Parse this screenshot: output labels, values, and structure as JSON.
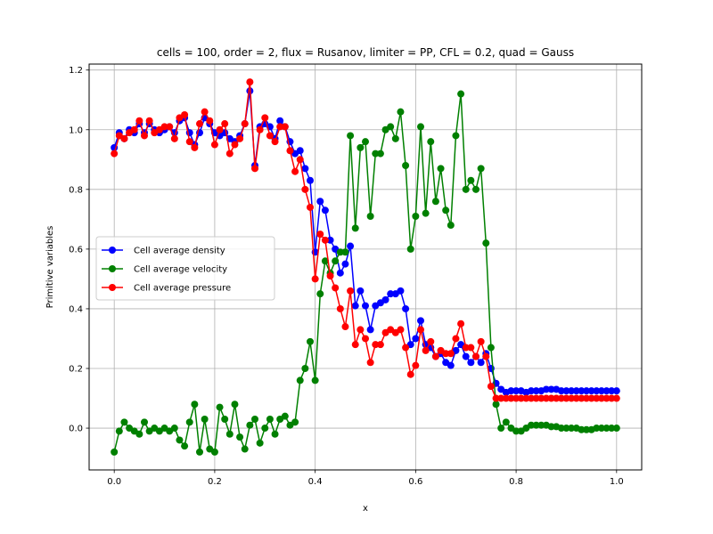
{
  "chart_data": {
    "type": "line",
    "title": "cells = 100, order = 2, flux = Rusanov, limiter = PP, CFL = 0.2, quad = Gauss",
    "xlabel": "x",
    "ylabel": "Primitive variables",
    "xlim": [
      -0.05,
      1.05
    ],
    "ylim": [
      -0.14,
      1.22
    ],
    "xticks": [
      0.0,
      0.2,
      0.4,
      0.6,
      0.8,
      1.0
    ],
    "xtick_labels": [
      "0.0",
      "0.2",
      "0.4",
      "0.6",
      "0.8",
      "1.0"
    ],
    "yticks": [
      0.0,
      0.2,
      0.4,
      0.6,
      0.8,
      1.0,
      1.2
    ],
    "ytick_labels": [
      "0.0",
      "0.2",
      "0.4",
      "0.6",
      "0.8",
      "1.0",
      "1.2"
    ],
    "grid": true,
    "legend_position": "center-left",
    "x": [
      0.0,
      0.01,
      0.02,
      0.03,
      0.04,
      0.05,
      0.06,
      0.07,
      0.08,
      0.09,
      0.1,
      0.11,
      0.12,
      0.13,
      0.14,
      0.15,
      0.16,
      0.17,
      0.18,
      0.19,
      0.2,
      0.21,
      0.22,
      0.23,
      0.24,
      0.25,
      0.26,
      0.27,
      0.28,
      0.29,
      0.3,
      0.31,
      0.32,
      0.33,
      0.34,
      0.35,
      0.36,
      0.37,
      0.38,
      0.39,
      0.4,
      0.41,
      0.42,
      0.43,
      0.44,
      0.45,
      0.46,
      0.47,
      0.48,
      0.49,
      0.5,
      0.51,
      0.52,
      0.53,
      0.54,
      0.55,
      0.56,
      0.57,
      0.58,
      0.59,
      0.6,
      0.61,
      0.62,
      0.63,
      0.64,
      0.65,
      0.66,
      0.67,
      0.68,
      0.69,
      0.7,
      0.71,
      0.72,
      0.73,
      0.74,
      0.75,
      0.76,
      0.77,
      0.78,
      0.79,
      0.8,
      0.81,
      0.82,
      0.83,
      0.84,
      0.85,
      0.86,
      0.87,
      0.88,
      0.89,
      0.9,
      0.91,
      0.92,
      0.93,
      0.94,
      0.95,
      0.96,
      0.97,
      0.98,
      0.99,
      1.0
    ],
    "series": [
      {
        "name": "Cell average density",
        "color": "#0000ff",
        "values": [
          0.94,
          0.99,
          0.97,
          1.0,
          0.99,
          1.02,
          0.99,
          1.02,
          1.0,
          0.99,
          1.0,
          1.01,
          0.99,
          1.03,
          1.04,
          0.99,
          0.95,
          0.99,
          1.04,
          1.02,
          0.99,
          0.98,
          0.99,
          0.97,
          0.96,
          0.98,
          1.02,
          1.13,
          0.88,
          1.01,
          1.02,
          1.01,
          0.97,
          1.03,
          1.01,
          0.96,
          0.92,
          0.93,
          0.87,
          0.83,
          0.59,
          0.76,
          0.73,
          0.63,
          0.6,
          0.52,
          0.55,
          0.61,
          0.41,
          0.46,
          0.41,
          0.33,
          0.41,
          0.42,
          0.43,
          0.45,
          0.45,
          0.46,
          0.4,
          0.28,
          0.3,
          0.36,
          0.28,
          0.27,
          0.24,
          0.25,
          0.22,
          0.21,
          0.26,
          0.28,
          0.24,
          0.22,
          0.24,
          0.22,
          0.25,
          0.2,
          0.15,
          0.13,
          0.12,
          0.125,
          0.125,
          0.125,
          0.12,
          0.125,
          0.125,
          0.125,
          0.13,
          0.13,
          0.13,
          0.125,
          0.125,
          0.125,
          0.125,
          0.125,
          0.125,
          0.125,
          0.125,
          0.125,
          0.125,
          0.125,
          0.125
        ]
      },
      {
        "name": "Cell average velocity",
        "color": "#008000",
        "values": [
          -0.08,
          -0.01,
          0.02,
          0.0,
          -0.01,
          -0.02,
          0.02,
          -0.01,
          0.0,
          -0.01,
          0.0,
          -0.01,
          0.0,
          -0.04,
          -0.06,
          0.02,
          0.08,
          -0.08,
          0.03,
          -0.07,
          -0.08,
          0.07,
          0.03,
          -0.02,
          0.08,
          -0.03,
          -0.07,
          0.01,
          0.03,
          -0.05,
          0.0,
          0.03,
          -0.02,
          0.03,
          0.04,
          0.01,
          0.02,
          0.16,
          0.2,
          0.29,
          0.16,
          0.45,
          0.56,
          0.52,
          0.56,
          0.59,
          0.59,
          0.98,
          0.67,
          0.94,
          0.96,
          0.71,
          0.92,
          0.92,
          1.0,
          1.01,
          0.97,
          1.06,
          0.88,
          0.6,
          0.71,
          1.01,
          0.72,
          0.96,
          0.76,
          0.87,
          0.73,
          0.68,
          0.98,
          1.12,
          0.8,
          0.83,
          0.8,
          0.87,
          0.62,
          0.27,
          0.08,
          0.0,
          0.02,
          0.0,
          -0.01,
          -0.01,
          0.0,
          0.01,
          0.01,
          0.01,
          0.01,
          0.005,
          0.005,
          0.0,
          0.0,
          0.0,
          0.0,
          -0.005,
          -0.005,
          -0.005,
          0.0,
          0.0,
          0.0,
          0.0,
          0.0
        ]
      },
      {
        "name": "Cell average pressure",
        "color": "#ff0000",
        "values": [
          0.92,
          0.98,
          0.97,
          0.99,
          1.0,
          1.03,
          0.98,
          1.03,
          0.99,
          1.0,
          1.01,
          1.01,
          0.97,
          1.04,
          1.05,
          0.96,
          0.94,
          1.02,
          1.06,
          1.03,
          0.95,
          1.0,
          1.02,
          0.92,
          0.95,
          0.97,
          1.02,
          1.16,
          0.87,
          1.0,
          1.04,
          0.98,
          0.96,
          1.01,
          1.01,
          0.93,
          0.86,
          0.9,
          0.8,
          0.74,
          0.5,
          0.65,
          0.63,
          0.51,
          0.47,
          0.4,
          0.34,
          0.46,
          0.28,
          0.33,
          0.3,
          0.22,
          0.28,
          0.28,
          0.32,
          0.33,
          0.32,
          0.33,
          0.27,
          0.18,
          0.21,
          0.33,
          0.26,
          0.29,
          0.24,
          0.26,
          0.25,
          0.25,
          0.3,
          0.35,
          0.27,
          0.27,
          0.24,
          0.29,
          0.24,
          0.14,
          0.1,
          0.1,
          0.1,
          0.1,
          0.1,
          0.1,
          0.1,
          0.1,
          0.1,
          0.1,
          0.1,
          0.1,
          0.1,
          0.1,
          0.1,
          0.1,
          0.1,
          0.1,
          0.1,
          0.1,
          0.1,
          0.1,
          0.1,
          0.1,
          0.1
        ]
      }
    ]
  }
}
